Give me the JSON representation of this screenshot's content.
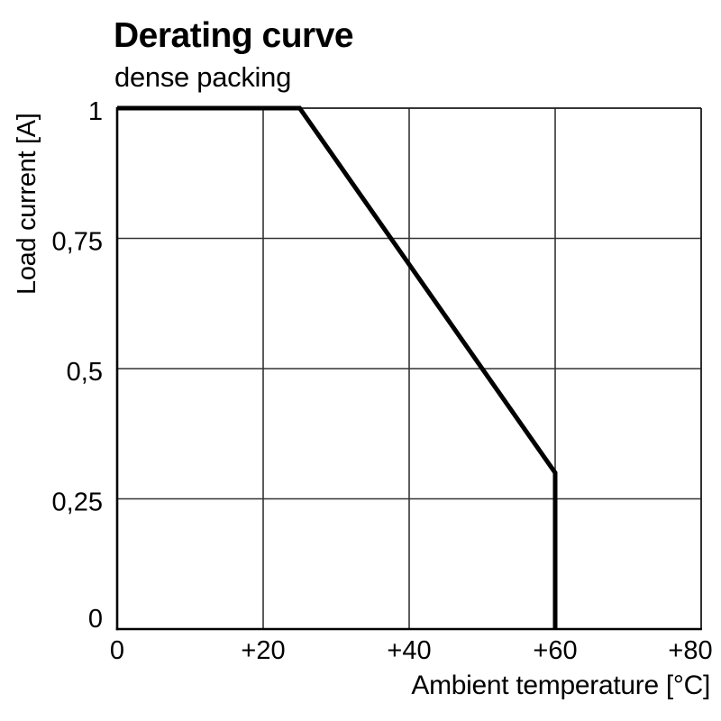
{
  "figure": {
    "title": "Derating curve",
    "subtitle": "dense packing"
  },
  "chart_data": {
    "type": "line",
    "title": "Derating curve",
    "subtitle": "dense packing",
    "xlabel": "Ambient temperature [°C]",
    "ylabel": "Load current [A]",
    "xlim": [
      0,
      80
    ],
    "ylim": [
      0,
      1
    ],
    "grid": true,
    "legend_position": "none",
    "x_ticks": [
      {
        "value": 0,
        "label": "0"
      },
      {
        "value": 20,
        "label": "+20"
      },
      {
        "value": 40,
        "label": "+40"
      },
      {
        "value": 60,
        "label": "+60"
      },
      {
        "value": 80,
        "label": "+80"
      }
    ],
    "y_ticks": [
      {
        "value": 0,
        "label": "0"
      },
      {
        "value": 0.25,
        "label": "0,25"
      },
      {
        "value": 0.5,
        "label": "0,5"
      },
      {
        "value": 0.75,
        "label": "0,75"
      },
      {
        "value": 1,
        "label": "1"
      }
    ],
    "series": [
      {
        "name": "load-current-vs-ambient-temperature",
        "points": [
          [
            0,
            1
          ],
          [
            25,
            1
          ],
          [
            60,
            0.3
          ],
          [
            60,
            0
          ]
        ]
      }
    ],
    "colors": {
      "curve": "#000000",
      "grid": "#333333",
      "axis": "#000000",
      "border": "#1a1a1a",
      "background": "#ffffff",
      "text": "#000000"
    }
  }
}
